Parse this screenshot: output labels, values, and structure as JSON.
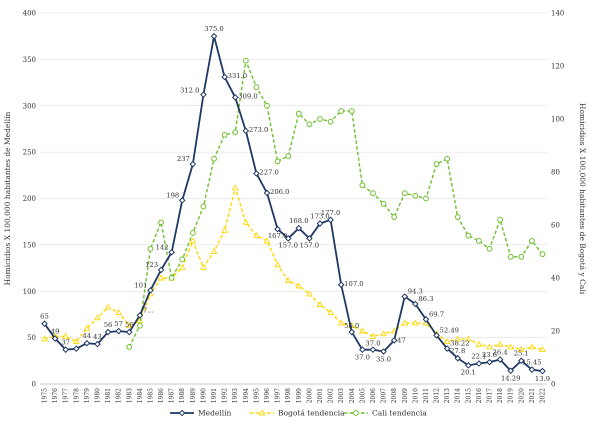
{
  "chart_data": {
    "type": "line",
    "x": [
      "1975",
      "1976",
      "1977",
      "1978",
      "1979",
      "1980",
      "1981",
      "1982",
      "1983",
      "1984",
      "1985",
      "1986",
      "1987",
      "1988",
      "1989",
      "1990",
      "1991",
      "1992",
      "1993",
      "1994",
      "1995",
      "1996",
      "1997",
      "1998",
      "1999",
      "2000",
      "2001",
      "2002",
      "2003",
      "2004",
      "2005",
      "2006",
      "2007",
      "2008",
      "2009",
      "2010",
      "2011",
      "2012",
      "2013",
      "2014",
      "2015",
      "2016",
      "2017",
      "2018",
      "2019",
      "2020",
      "2021",
      "2022"
    ],
    "ylabel": "Homicidios X 100,000 habitantes de Medellín",
    "y2label": "Homicidios X 100,000 habitantes de Bogotá y Cali",
    "ylim": [
      0,
      400
    ],
    "y2lim": [
      0,
      140
    ],
    "yticks": [
      "0",
      "50",
      "100",
      "150",
      "200",
      "250",
      "300",
      "350",
      "400"
    ],
    "y2ticks": [
      "0",
      "20",
      "40",
      "60",
      "80",
      "100",
      "120",
      "140"
    ],
    "legend": "bottom",
    "series": [
      {
        "name": "Medellín",
        "axis": "left",
        "color": "#1f3864",
        "style": "solid",
        "marker": "diamond",
        "values": [
          65,
          49,
          37,
          38,
          44,
          43,
          56,
          57,
          56,
          74,
          101,
          123,
          142,
          198,
          237,
          312,
          375,
          331,
          309,
          273,
          227,
          206,
          167,
          157,
          168,
          157,
          173,
          177,
          107,
          56,
          37,
          37,
          35,
          47,
          94.3,
          86.3,
          69.7,
          52.49,
          38.22,
          27.8,
          20.1,
          22.1,
          23.6,
          26.4,
          14.29,
          25.1,
          15.45,
          13.9
        ],
        "labels": [
          "65",
          "49",
          "37",
          "",
          "44",
          "43",
          "56",
          "57",
          "56",
          "7…",
          "101",
          "123",
          "142",
          "198",
          "237",
          "312.0",
          "375.0",
          "331.0",
          "309.0",
          "273.0",
          "227.0",
          "206.0",
          "167.0",
          "157.0",
          "168.0",
          "157.0",
          "173.0",
          "177.0",
          "107.0",
          "56.0",
          "37.0",
          "37.0",
          "35.0",
          "47",
          "94.3",
          "86.3",
          "69.7",
          "52.49",
          "38.22",
          "27.8",
          "20.1",
          "22.1",
          "23.6",
          "26.4",
          "14.29",
          "25.1",
          "15.45",
          "13.9"
        ]
      },
      {
        "name": "Bogotá tendencia",
        "axis": "right",
        "color": "#ffd700",
        "style": "dashed",
        "marker": "triangle",
        "values": [
          17,
          18,
          18,
          16,
          21,
          25,
          29,
          27,
          22,
          24,
          34,
          40,
          40,
          44,
          54,
          44,
          50,
          58,
          74,
          61,
          56,
          54,
          45,
          39,
          37,
          34,
          30,
          27,
          23,
          22,
          20,
          18,
          19,
          20,
          23,
          23,
          23,
          19,
          16,
          17,
          17,
          15,
          14,
          15,
          14,
          13,
          14,
          13
        ]
      },
      {
        "name": "Cali tendencia",
        "axis": "right",
        "color": "#6fbf2e",
        "style": "dashed",
        "marker": "circle",
        "values": [
          null,
          null,
          null,
          null,
          null,
          null,
          null,
          null,
          14,
          22,
          51,
          61,
          40,
          47,
          57,
          67,
          85,
          94,
          95,
          122,
          112,
          105,
          84,
          86,
          102,
          98,
          100,
          99,
          103,
          103,
          75,
          72,
          68,
          63,
          72,
          71,
          70,
          83,
          85,
          63,
          56,
          54,
          51,
          62,
          48,
          48,
          54,
          49
        ]
      }
    ]
  }
}
